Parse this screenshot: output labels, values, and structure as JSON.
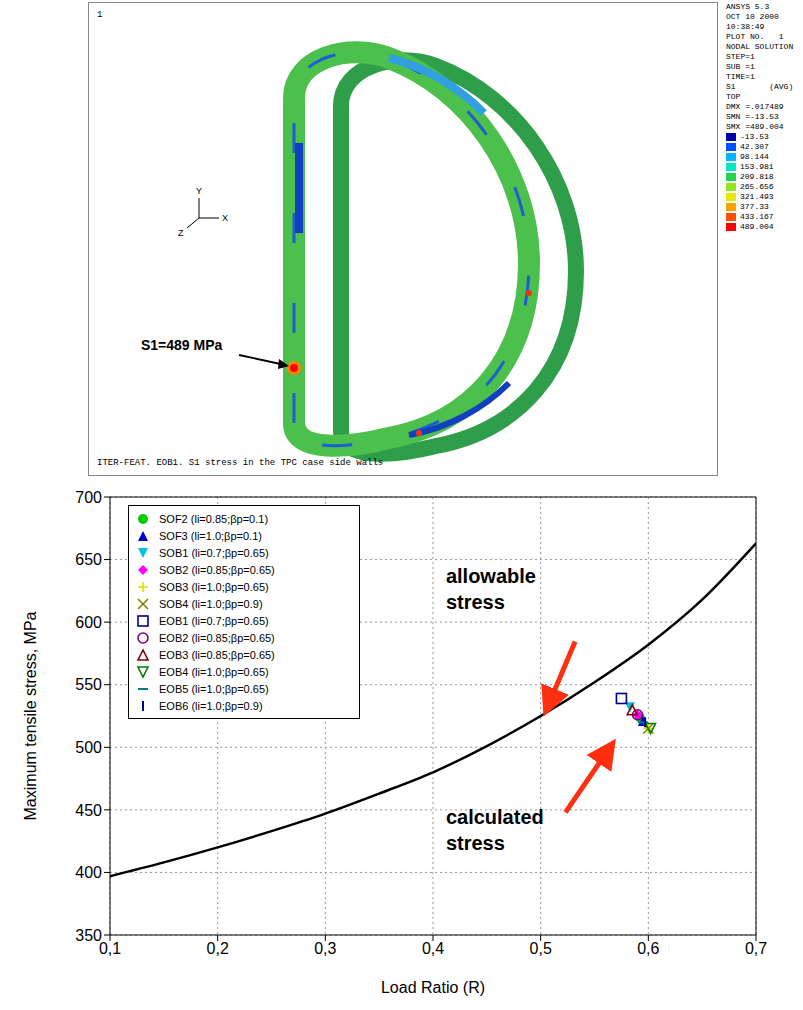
{
  "fea_plot": {
    "plot_number": "1",
    "header": [
      "ANSYS 5.3",
      "OCT 10 2000",
      "10:38:49",
      "PLOT NO.   1",
      "NODAL SOLUTION",
      "STEP=1",
      "SUB =1",
      "TIME=1",
      "S1       (AVG)",
      "TOP",
      "DMX =.017489",
      "SMN =-13.53",
      "SMX =489.004"
    ],
    "color_scale": [
      -13.53,
      42.307,
      98.144,
      153.981,
      209.818,
      265.656,
      321.493,
      377.33,
      433.167,
      489.004
    ],
    "annotation": "S1=489 MPa",
    "axes": [
      "Y",
      "X",
      "Z"
    ],
    "caption": "ITER-FEAT. EOB1. S1 stress in the TPC case side walls"
  },
  "chart_data": {
    "type": "scatter",
    "x_label": "Load Ratio (R)",
    "y_label": "Maximum tensile stress, MPa",
    "xlim": [
      0.1,
      0.7
    ],
    "xticks": [
      {
        "value": 0.1,
        "label": "0,1"
      },
      {
        "value": 0.2,
        "label": "0,2"
      },
      {
        "value": 0.3,
        "label": "0,3"
      },
      {
        "value": 0.4,
        "label": "0,4"
      },
      {
        "value": 0.5,
        "label": "0,5"
      },
      {
        "value": 0.6,
        "label": "0,6"
      },
      {
        "value": 0.7,
        "label": "0,7"
      }
    ],
    "ylim": [
      350,
      700
    ],
    "yticks": [
      350,
      400,
      450,
      500,
      550,
      600,
      650,
      700
    ],
    "grid": true,
    "legend": "upper left",
    "annotations": [
      "allowable stress",
      "calculated stress"
    ],
    "series": [
      {
        "type": "line",
        "color": "#000000",
        "x": [
          0.1,
          0.15,
          0.2,
          0.25,
          0.3,
          0.35,
          0.4,
          0.45,
          0.5,
          0.55,
          0.6,
          0.65,
          0.7
        ],
        "values": [
          397,
          408,
          420,
          433,
          447,
          463,
          480,
          501,
          525,
          552,
          582,
          618,
          663
        ]
      },
      {
        "type": "scatter",
        "name": "SOF2 (li=0.85;βp=0.1)",
        "color": "#00cc00",
        "marker": "circle",
        "x": [
          0.592
        ],
        "values": [
          524
        ]
      },
      {
        "type": "scatter",
        "name": "SOF3 (li=1.0;βp=0.1)",
        "color": "#0000cc",
        "marker": "triangle",
        "x": [
          0.595
        ],
        "values": [
          521
        ]
      },
      {
        "type": "scatter",
        "name": "SOB1 (li=0.7;βp=0.65)",
        "color": "#00c0e0",
        "marker": "triangle-down",
        "x": [
          0.583
        ],
        "values": [
          532
        ]
      },
      {
        "type": "scatter",
        "name": "SOB2 (li=0.85;βp=0.65)",
        "color": "#ff00ff",
        "marker": "diamond",
        "x": [
          0.59
        ],
        "values": [
          526
        ]
      },
      {
        "type": "scatter",
        "name": "SOB3 (li=1.0;βp=0.65)",
        "color": "#e0e000",
        "marker": "plus",
        "x": [
          0.6
        ],
        "values": [
          515
        ]
      },
      {
        "type": "scatter",
        "name": "SOB4 (li=1.0;βp=0.9)",
        "color": "#808000",
        "marker": "x",
        "x": [
          0.6
        ],
        "values": [
          515
        ]
      },
      {
        "type": "scatter",
        "name": "EOB1 (li=0.7;βp=0.65)",
        "color": "#000080",
        "marker": "square-open",
        "x": [
          0.575
        ],
        "values": [
          539
        ]
      },
      {
        "type": "scatter",
        "name": "EOB2 (li=0.85;βp=0.65)",
        "color": "#800080",
        "marker": "circle-open",
        "x": [
          0.59
        ],
        "values": [
          526
        ]
      },
      {
        "type": "scatter",
        "name": "EOB3 (li=0.85;βp=0.65)",
        "color": "#800000",
        "marker": "triangle-open",
        "x": [
          0.585
        ],
        "values": [
          530
        ]
      },
      {
        "type": "scatter",
        "name": "EOB4 (li=1.0;βp=0.65)",
        "color": "#008000",
        "marker": "triangle-down-open",
        "x": [
          0.602
        ],
        "values": [
          515
        ]
      },
      {
        "type": "scatter",
        "name": "EOB5 (li=1.0;βp=0.65)",
        "color": "#008080",
        "marker": "dash",
        "x": [
          0.595
        ],
        "values": [
          520
        ]
      },
      {
        "type": "scatter",
        "name": "EOB6 (li=1.0;βp=0.9)",
        "color": "#000080",
        "marker": "vline",
        "x": [
          0.597
        ],
        "values": [
          520
        ]
      }
    ]
  }
}
